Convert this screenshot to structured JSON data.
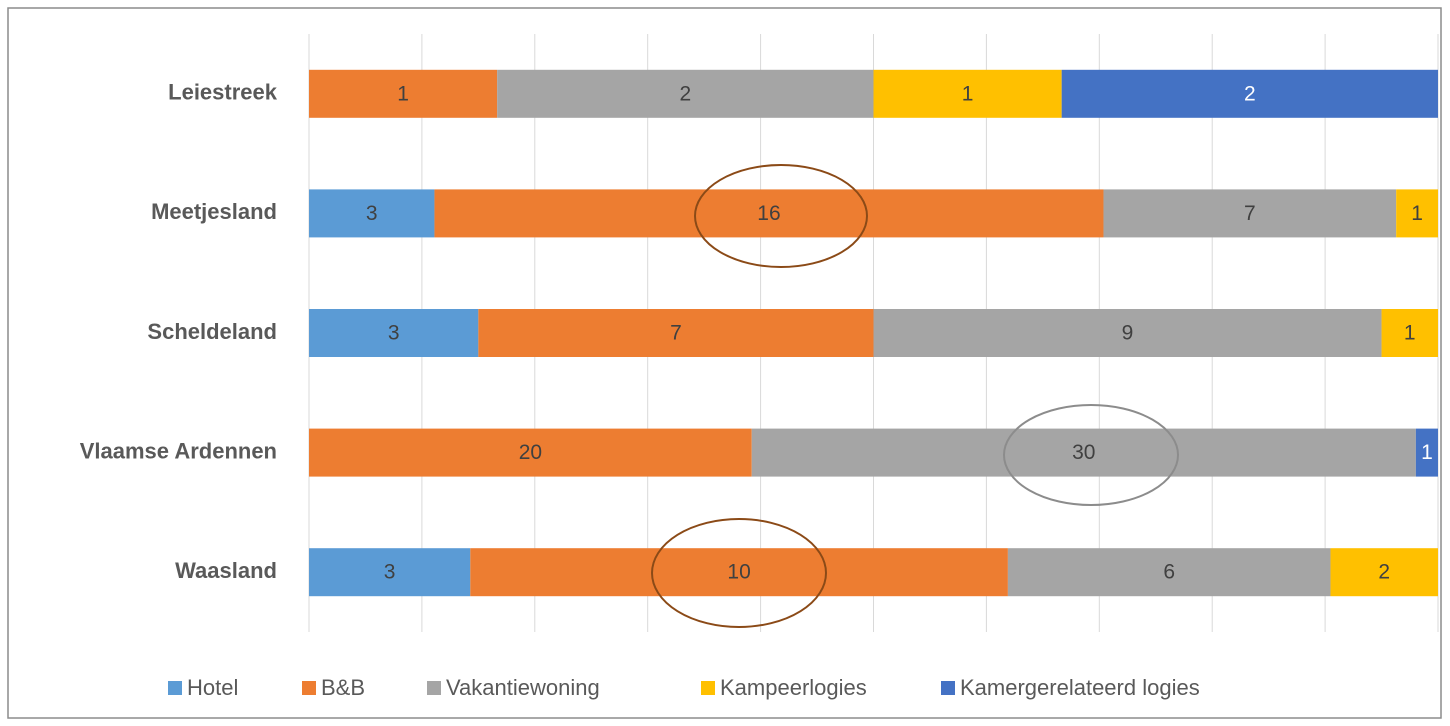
{
  "chart_data": {
    "type": "bar",
    "orientation": "horizontal",
    "stacked": "percent",
    "categories": [
      "Leiestreek",
      "Meetjesland",
      "Scheldeland",
      "Vlaamse Ardennen",
      "Waasland"
    ],
    "series": [
      {
        "name": "Hotel",
        "color": "#5b9bd5",
        "values": [
          null,
          3,
          3,
          null,
          3
        ]
      },
      {
        "name": "B&B",
        "color": "#ed7d31",
        "values": [
          1,
          16,
          7,
          20,
          10
        ]
      },
      {
        "name": "Vakantiewoning",
        "color": "#a5a5a5",
        "values": [
          2,
          7,
          9,
          30,
          6
        ]
      },
      {
        "name": "Kampeerlogies",
        "color": "#ffc000",
        "values": [
          1,
          1,
          1,
          null,
          2
        ]
      },
      {
        "name": "Kamergerelateerd logies",
        "color": "#4472c4",
        "values": [
          2,
          null,
          null,
          1,
          null
        ]
      }
    ],
    "xlim": [
      0,
      100
    ],
    "xticks": [
      0,
      10,
      20,
      30,
      40,
      50,
      60,
      70,
      80,
      90,
      100
    ],
    "grid": true,
    "legend": "bottom"
  }
}
